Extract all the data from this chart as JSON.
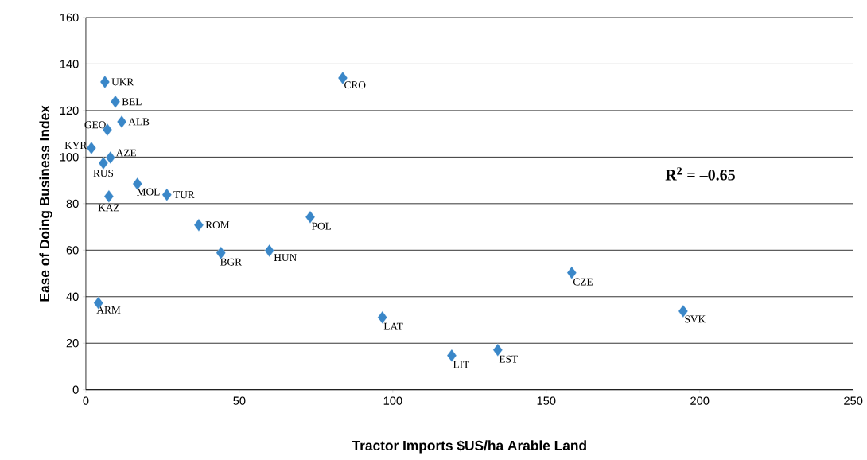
{
  "chart_data": {
    "type": "scatter",
    "xlabel": "Tractor Imports $US/ha Arable Land",
    "ylabel": "Ease of Doing Business Index",
    "x": [
      6.2,
      9.6,
      11.7,
      7.0,
      1.8,
      8.0,
      5.7,
      7.5,
      16.8,
      26.4,
      36.8,
      44.0,
      59.8,
      73.1,
      83.7,
      4.1,
      96.6,
      119.2,
      134.2,
      158.3,
      194.6
    ],
    "series": [
      {
        "color": "#3a87c8",
        "values": [
          132.3,
          123.8,
          115.2,
          111.8,
          103.9,
          99.8,
          97.4,
          83.1,
          88.5,
          83.8,
          70.8,
          58.8,
          59.8,
          74.2,
          134,
          37.3,
          31.1,
          14.7,
          17.1,
          50.3,
          33.8
        ]
      }
    ],
    "annotations": [
      {
        "text": "UKR",
        "x": 6.2,
        "y": 132.3
      },
      {
        "text": "BEL",
        "x": 9.6,
        "y": 123.8
      },
      {
        "text": "ALB",
        "x": 11.7,
        "y": 115.2
      },
      {
        "text": "GEO",
        "x": 7.0,
        "y": 111.8
      },
      {
        "text": "KYR",
        "x": 1.8,
        "y": 103.9
      },
      {
        "text": "AZE",
        "x": 8.0,
        "y": 99.8
      },
      {
        "text": "RUS",
        "x": 5.7,
        "y": 97.4
      },
      {
        "text": "KAZ",
        "x": 7.5,
        "y": 83.1
      },
      {
        "text": "MOL",
        "x": 16.8,
        "y": 88.5
      },
      {
        "text": "TUR",
        "x": 26.4,
        "y": 83.8
      },
      {
        "text": "ROM",
        "x": 36.8,
        "y": 70.8
      },
      {
        "text": "BGR",
        "x": 44.0,
        "y": 58.8
      },
      {
        "text": "HUN",
        "x": 59.8,
        "y": 59.8
      },
      {
        "text": "POL",
        "x": 73.1,
        "y": 74.2
      },
      {
        "text": "CRO",
        "x": 83.7,
        "y": 134
      },
      {
        "text": "ARM",
        "x": 4.1,
        "y": 37.3
      },
      {
        "text": "LAT",
        "x": 96.6,
        "y": 31.1
      },
      {
        "text": "LIT",
        "x": 119.2,
        "y": 14.7
      },
      {
        "text": "EST",
        "x": 134.2,
        "y": 17.1
      },
      {
        "text": "CZE",
        "x": 158.3,
        "y": 50.3
      },
      {
        "text": "SVK",
        "x": 194.6,
        "y": 33.8
      },
      "**R$^{2}$ = –0.65**"
    ],
    "xlim": [
      0,
      250
    ],
    "ylim": [
      0,
      160
    ],
    "xticks": [
      0,
      50,
      100,
      150,
      200,
      250
    ],
    "yticks": [
      0,
      20,
      40,
      60,
      80,
      100,
      120,
      140,
      160
    ],
    "grid": "y",
    "marker": "diamond"
  }
}
